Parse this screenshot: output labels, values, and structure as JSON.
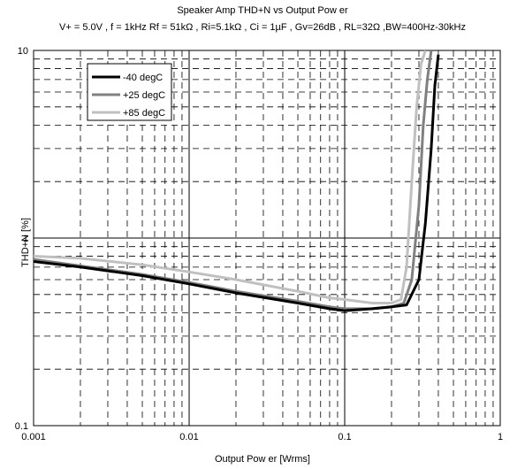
{
  "chart_data": {
    "type": "line",
    "title": "Speaker Amp THD+N vs Output Pow er",
    "subtitle": "V+ = 5.0V , f = 1kHz Rf = 51kΩ , Ri=5.1kΩ , Ci = 1µF , Gv=26dB , RL=32Ω ,BW=400Hz-30kHz",
    "xlabel": "Output Pow er [Wrms]",
    "ylabel": "THD+N [%]",
    "xscale": "log",
    "yscale": "log",
    "xlim": [
      0.001,
      1
    ],
    "ylim": [
      0.1,
      10
    ],
    "xticks": [
      "0.001",
      "0.01",
      "0.1",
      "1"
    ],
    "yticks": [
      "0.1",
      "1",
      "10"
    ],
    "grid": true,
    "legend_position": "top-left",
    "series": [
      {
        "name": "-40 degC",
        "color": "#000000",
        "x": [
          0.001,
          0.002,
          0.005,
          0.01,
          0.02,
          0.05,
          0.08,
          0.1,
          0.15,
          0.2,
          0.25,
          0.3,
          0.33,
          0.36,
          0.38,
          0.4
        ],
        "y": [
          0.75,
          0.7,
          0.63,
          0.57,
          0.51,
          0.45,
          0.42,
          0.41,
          0.42,
          0.43,
          0.44,
          0.6,
          1.2,
          3.0,
          6.5,
          9.5
        ]
      },
      {
        "name": "+25 degC",
        "color": "#808080",
        "x": [
          0.001,
          0.002,
          0.005,
          0.01,
          0.02,
          0.05,
          0.08,
          0.1,
          0.15,
          0.2,
          0.24,
          0.27,
          0.3,
          0.32,
          0.34,
          0.36
        ],
        "y": [
          0.77,
          0.71,
          0.64,
          0.58,
          0.52,
          0.46,
          0.43,
          0.42,
          0.42,
          0.43,
          0.45,
          0.6,
          1.5,
          4.0,
          7.0,
          10
        ]
      },
      {
        "name": "+85 degC",
        "color": "#c0c0c0",
        "x": [
          0.001,
          0.002,
          0.005,
          0.01,
          0.02,
          0.05,
          0.08,
          0.1,
          0.15,
          0.2,
          0.23,
          0.25,
          0.27,
          0.29,
          0.31,
          0.33
        ],
        "y": [
          0.8,
          0.78,
          0.72,
          0.66,
          0.6,
          0.52,
          0.48,
          0.47,
          0.45,
          0.45,
          0.47,
          0.7,
          2.0,
          5.0,
          8.5,
          10
        ]
      }
    ]
  }
}
